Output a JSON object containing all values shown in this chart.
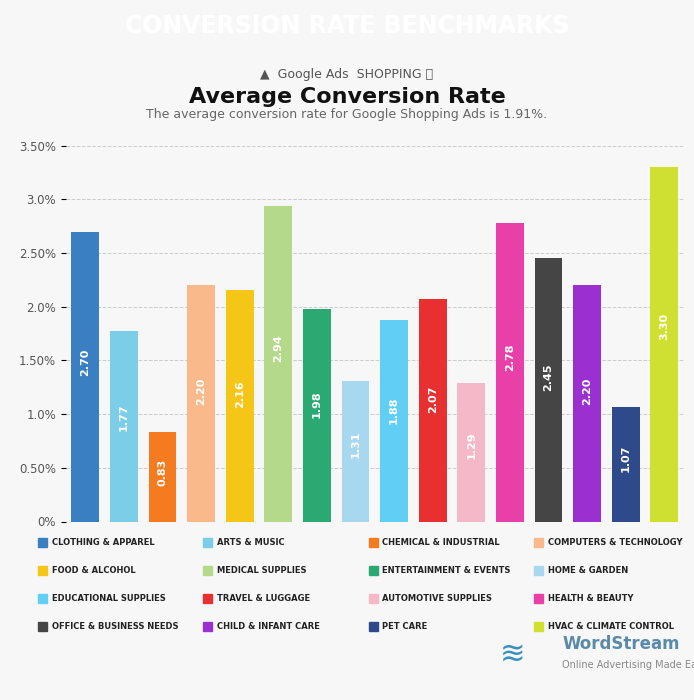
{
  "title": "Average Conversion Rate",
  "subtitle": "The average conversion rate for Google Shopping Ads is 1.91%.",
  "header": "CONVERSION RATE BENCHMARKS",
  "header_bg": "#2e3245",
  "values": [
    2.7,
    1.77,
    0.83,
    2.2,
    2.16,
    2.94,
    1.98,
    1.31,
    1.88,
    2.07,
    1.29,
    2.78,
    2.45,
    2.2,
    1.07,
    3.3
  ],
  "colors": [
    "#3a7fc1",
    "#7bcde8",
    "#f47b20",
    "#f9b98a",
    "#f5c518",
    "#b5d98a",
    "#2aaa72",
    "#a8d8f0",
    "#60cef5",
    "#e83030",
    "#f5b8c8",
    "#e840a8",
    "#454545",
    "#9b30d0",
    "#2e4a8a",
    "#cfe030"
  ],
  "legend_items": [
    {
      "label": "CLOTHING & APPAREL",
      "color": "#3a7fc1"
    },
    {
      "label": "ARTS & MUSIC",
      "color": "#7bcde8"
    },
    {
      "label": "CHEMICAL & INDUSTRIAL",
      "color": "#f47b20"
    },
    {
      "label": "COMPUTERS & TECHNOLOGY",
      "color": "#f9b98a"
    },
    {
      "label": "FOOD & ALCOHOL",
      "color": "#f5c518"
    },
    {
      "label": "MEDICAL SUPPLIES",
      "color": "#b5d98a"
    },
    {
      "label": "ENTERTAINMENT & EVENTS",
      "color": "#2aaa72"
    },
    {
      "label": "HOME & GARDEN",
      "color": "#a8d8f0"
    },
    {
      "label": "EDUCATIONAL SUPPLIES",
      "color": "#60cef5"
    },
    {
      "label": "TRAVEL & LUGGAGE",
      "color": "#e83030"
    },
    {
      "label": "AUTOMOTIVE SUPPLIES",
      "color": "#f5b8c8"
    },
    {
      "label": "HEALTH & BEAUTY",
      "color": "#e840a8"
    },
    {
      "label": "OFFICE & BUSINESS NEEDS",
      "color": "#454545"
    },
    {
      "label": "CHILD & INFANT CARE",
      "color": "#9b30d0"
    },
    {
      "label": "PET CARE",
      "color": "#2e4a8a"
    },
    {
      "label": "HVAC & CLIMATE CONTROL",
      "color": "#cfe030"
    }
  ],
  "ytick_vals": [
    0.0,
    0.5,
    1.0,
    1.5,
    2.0,
    2.5,
    3.0,
    3.5
  ],
  "ytick_labels": [
    "0%",
    "0.50%",
    "1.0%",
    "1.50%",
    "2.0%",
    "2.50%",
    "3.0%",
    "3.50%"
  ],
  "ylim": [
    0,
    3.65
  ],
  "bg_color": "#f7f7f7",
  "bar_text_color": "#ffffff",
  "bar_text_fontsize": 8.0
}
